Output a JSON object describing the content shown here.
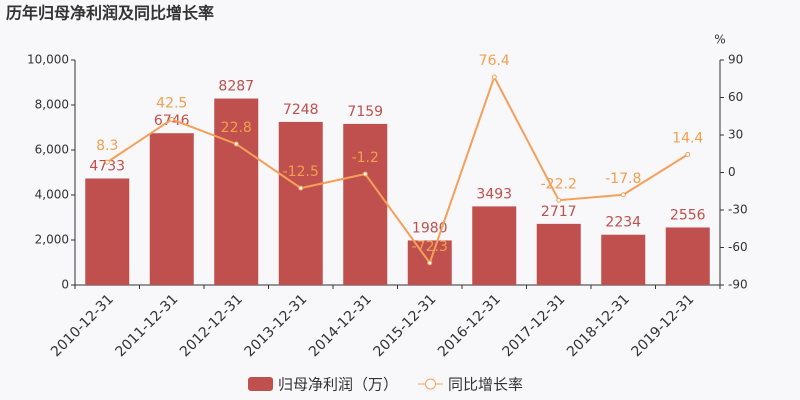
{
  "chart_data": {
    "type": "bar-line",
    "title": "历年归母净利润及同比增长率",
    "categories": [
      "2010-12-31",
      "2011-12-31",
      "2012-12-31",
      "2013-12-31",
      "2014-12-31",
      "2015-12-31",
      "2016-12-31",
      "2017-12-31",
      "2018-12-31",
      "2019-12-31"
    ],
    "series": [
      {
        "name": "归母净利润（万）",
        "type": "bar",
        "color": "#c0504d",
        "label_color": "#c0504d",
        "values": [
          4733,
          6746,
          8287,
          7248,
          7159,
          1980,
          3493,
          2717,
          2234,
          2556
        ]
      },
      {
        "name": "同比增长率",
        "type": "line",
        "axis": "y2",
        "color": "#f5a05a",
        "label_color": "#f0a050",
        "values": [
          8.3,
          42.5,
          22.8,
          -12.5,
          -1.2,
          -72.3,
          76.4,
          -22.2,
          -17.8,
          14.4
        ]
      }
    ],
    "ylim": [
      0,
      10000
    ],
    "yticks": [
      0,
      {
        "value": 2000,
        "label": "2,000"
      },
      {
        "value": 4000,
        "label": "4,000"
      },
      {
        "value": 6000,
        "label": "6,000"
      },
      {
        "value": 8000,
        "label": "8,000"
      },
      {
        "value": 10000,
        "label": "10,000"
      }
    ],
    "y2lim": [
      -90,
      90
    ],
    "y2ticks": [
      -90,
      -60,
      -30,
      0,
      30,
      60,
      90
    ],
    "y2label": "%",
    "legend": "bottom"
  }
}
